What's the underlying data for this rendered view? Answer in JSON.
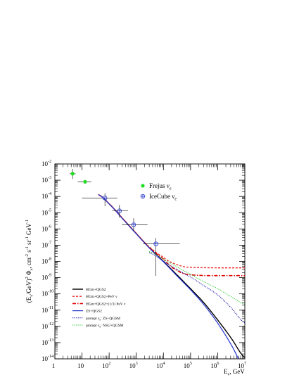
{
  "chart_data": {
    "type": "line",
    "title": "",
    "xlabel": {
      "base": "E",
      "sub": "ν",
      "suffix": ", GeV"
    },
    "ylabel": {
      "parts": [
        {
          "t": "(E",
          "k": "n"
        },
        {
          "t": "ν",
          "k": "sub"
        },
        {
          "t": "/GeV)",
          "k": "n"
        },
        {
          "t": "2",
          "k": "sup"
        },
        {
          "t": " Φ",
          "k": "n"
        },
        {
          "t": "ν",
          "k": "sub"
        },
        {
          "t": ", cm",
          "k": "n"
        },
        {
          "t": "-2",
          "k": "sup"
        },
        {
          "t": " s",
          "k": "n"
        },
        {
          "t": "-1",
          "k": "sup"
        },
        {
          "t": " sr",
          "k": "n"
        },
        {
          "t": "-1",
          "k": "sup"
        },
        {
          "t": " GeV",
          "k": "n"
        },
        {
          "t": "-1",
          "k": "sup"
        }
      ]
    },
    "x_scale": "log",
    "y_scale": "log",
    "xlim": [
      1,
      10000000
    ],
    "ylim": [
      1e-14,
      0.01
    ],
    "x_ticks": [
      {
        "v": 1,
        "base": "1",
        "exp": ""
      },
      {
        "v": 10,
        "base": "10",
        "exp": ""
      },
      {
        "v": 100,
        "base": "10",
        "exp": "2"
      },
      {
        "v": 1000,
        "base": "10",
        "exp": "3"
      },
      {
        "v": 10000,
        "base": "10",
        "exp": "4"
      },
      {
        "v": 100000,
        "base": "10",
        "exp": "5"
      },
      {
        "v": 1000000,
        "base": "10",
        "exp": "6"
      },
      {
        "v": 10000000,
        "base": "10",
        "exp": "7"
      }
    ],
    "y_ticks": [
      {
        "v": 0.01,
        "exp": "-2"
      },
      {
        "v": 0.001,
        "exp": "-3"
      },
      {
        "v": 0.0001,
        "exp": "-4"
      },
      {
        "v": 1e-05,
        "exp": "-5"
      },
      {
        "v": 1e-06,
        "exp": "-6"
      },
      {
        "v": 1e-07,
        "exp": "-7"
      },
      {
        "v": 1e-08,
        "exp": "-8"
      },
      {
        "v": 1e-09,
        "exp": "-9"
      },
      {
        "v": 1e-10,
        "exp": "-10"
      },
      {
        "v": 1e-11,
        "exp": "-11"
      },
      {
        "v": 1e-12,
        "exp": "-12"
      },
      {
        "v": 1e-13,
        "exp": "-13"
      },
      {
        "v": 1e-14,
        "exp": "-14"
      }
    ],
    "data_series": [
      {
        "name": "Frejus ν_e",
        "legend_base": "Frejus ν",
        "legend_sub": "e",
        "color": "#22dd22",
        "marker": "filled-circle",
        "points": [
          {
            "x": 4.5,
            "y": 0.0025,
            "xlo": 3.5,
            "xhi": 5.8,
            "ylo": 0.0012,
            "yhi": 0.005
          },
          {
            "x": 13,
            "y": 0.0008,
            "xlo": 7,
            "xhi": 22,
            "ylo": 0.0006,
            "yhi": 0.001
          }
        ]
      },
      {
        "name": "IceCube ν_e",
        "legend_base": "IceCube ν",
        "legend_sub": "e",
        "color": "#3344cc",
        "marker": "open-cross-circle",
        "points": [
          {
            "x": 70,
            "y": 8e-05,
            "xlo": 10,
            "xhi": 200,
            "ylo": 2.5e-05,
            "yhi": 0.00016
          },
          {
            "x": 240,
            "y": 1.3e-05,
            "xlo": 130,
            "xhi": 500,
            "ylo": 5e-06,
            "yhi": 3e-05
          },
          {
            "x": 800,
            "y": 1.8e-06,
            "xlo": 300,
            "xhi": 2600,
            "ylo": 7e-07,
            "yhi": 4.5e-06
          },
          {
            "x": 5300,
            "y": 1.2e-07,
            "xlo": 1800,
            "xhi": 40000,
            "ylo": 1.3e-09,
            "yhi": 2.8e-07
          }
        ]
      }
    ],
    "curves": [
      {
        "name": "HGm+QGS2",
        "color": "#000000",
        "dash": "",
        "width": 1.4,
        "x": [
          40,
          100,
          300,
          1000,
          3000,
          10000,
          30000,
          100000,
          300000,
          1000000,
          3000000,
          10000000
        ],
        "y": [
          0.00013,
          3.5e-05,
          4.7e-06,
          5.2e-07,
          7e-08,
          1e-08,
          1.6e-09,
          2.1e-10,
          3e-11,
          2.5e-12,
          2.1e-13,
          1.2e-14
        ]
      },
      {
        "name": "HGm+QGS2+PeV ν",
        "color": "#ee2222",
        "dash": "3,2",
        "width": 1.3,
        "x": [
          40,
          100,
          300,
          1000,
          3000,
          10000,
          20000,
          50000,
          100000,
          300000,
          1000000,
          3000000,
          10000000
        ],
        "y": [
          0.00013,
          3.5e-05,
          4.7e-06,
          5.3e-07,
          7.8e-08,
          1.8e-08,
          8.5e-09,
          5e-09,
          4.3e-09,
          4.1e-09,
          4e-09,
          4e-09,
          4e-09
        ]
      },
      {
        "name": "HGm+QGS2+(1/3) PeV ν",
        "color": "#dd0000",
        "dash": "5,2,1.5,2",
        "width": 1.6,
        "x": [
          40,
          100,
          300,
          1000,
          3000,
          10000,
          20000,
          50000,
          100000,
          300000,
          1000000,
          3000000,
          10000000
        ],
        "y": [
          0.00013,
          3.5e-05,
          4.7e-06,
          5.2e-07,
          7.3e-08,
          1.4e-08,
          4.5e-09,
          1.9e-09,
          1.5e-09,
          1.35e-09,
          1.33e-09,
          1.33e-09,
          1.33e-09
        ]
      },
      {
        "name": "ZS+QGS2",
        "color": "#2233cc",
        "dash": "",
        "width": 1.2,
        "x": [
          40,
          100,
          300,
          1000,
          3000,
          10000,
          30000,
          100000,
          300000,
          1000000,
          3000000,
          10000000
        ],
        "y": [
          0.00013,
          3.4e-05,
          4.5e-06,
          5e-07,
          6.7e-08,
          9.5e-09,
          1.4e-09,
          1.8e-10,
          2.3e-11,
          1.6e-12,
          8.5e-14,
          2.5e-15
        ]
      },
      {
        "name": "prompt ν_e: ZS+QGSM",
        "color": "#1111aa",
        "dash": "1.3,1.3",
        "width": 1.0,
        "x": [
          3000,
          10000,
          30000,
          100000,
          300000,
          1000000,
          3000000,
          10000000
        ],
        "y": [
          3.5e-08,
          1.05e-08,
          3.3e-09,
          1.1e-09,
          3.3e-10,
          8.7e-11,
          1.5e-11,
          1.6e-12
        ]
      },
      {
        "name": "prompt ν_e: NSU+QGSM",
        "color": "#33cc33",
        "dash": "1.3,1.3",
        "width": 1.0,
        "x": [
          3000,
          10000,
          30000,
          100000,
          300000,
          1000000,
          3000000,
          10000000
        ],
        "y": [
          4e-08,
          1.4e-08,
          4.8e-09,
          1.6e-09,
          5.8e-10,
          2.1e-10,
          7e-11,
          2.3e-11
        ]
      }
    ],
    "legend_lines": [
      {
        "text": "HGm+QGS2",
        "color": "#000000",
        "dash": "",
        "width": 1.4
      },
      {
        "text": "HGm+QGS2+PeV ν",
        "color": "#ee2222",
        "dash": "3,2",
        "width": 1.3
      },
      {
        "text": "HGm+QGS2+(1/3) PeV ν",
        "color": "#dd0000",
        "dash": "5,2,1.5,2",
        "width": 1.6
      },
      {
        "text": "ZS+QGS2",
        "color": "#2233cc",
        "dash": "",
        "width": 1.2
      },
      {
        "text": "prompt ν_e: ZS+QGSM",
        "color": "#1111aa",
        "dash": "1.3,1.3",
        "width": 1.0
      },
      {
        "text": "prompt ν_e: NSU+QGSM",
        "color": "#33cc33",
        "dash": "1.3,1.3",
        "width": 1.0
      }
    ],
    "legend_lines_placement": "bottom-left",
    "legend_markers_placement": "top-center",
    "grid": false
  }
}
